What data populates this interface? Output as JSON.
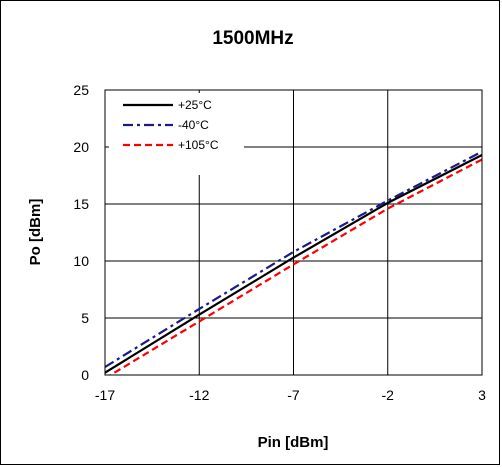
{
  "chart_data": {
    "type": "line",
    "title": "1500MHz",
    "xlabel": "Pin [dBm]",
    "ylabel": "Po [dBm]",
    "xlim": [
      -17,
      3
    ],
    "ylim": [
      0,
      25
    ],
    "xticks": [
      -17,
      -12,
      -7,
      -2,
      3
    ],
    "yticks": [
      0,
      5,
      10,
      15,
      20,
      25
    ],
    "grid": true,
    "legend_position": "top-left",
    "x": [
      -17,
      -12,
      -7,
      -2,
      3
    ],
    "series": [
      {
        "name": "+25°C",
        "color": "#000000",
        "dash": "solid",
        "values": [
          0.2,
          5.3,
          10.3,
          15.1,
          19.3
        ]
      },
      {
        "name": "-40°C",
        "color": "#1a1a8c",
        "dash": "dashdot",
        "values": [
          0.7,
          5.8,
          10.8,
          15.3,
          19.6
        ]
      },
      {
        "name": "+105°C",
        "color": "#ff0000",
        "dash": "dash",
        "values": [
          -0.3,
          4.7,
          9.7,
          14.6,
          18.9
        ]
      }
    ]
  }
}
